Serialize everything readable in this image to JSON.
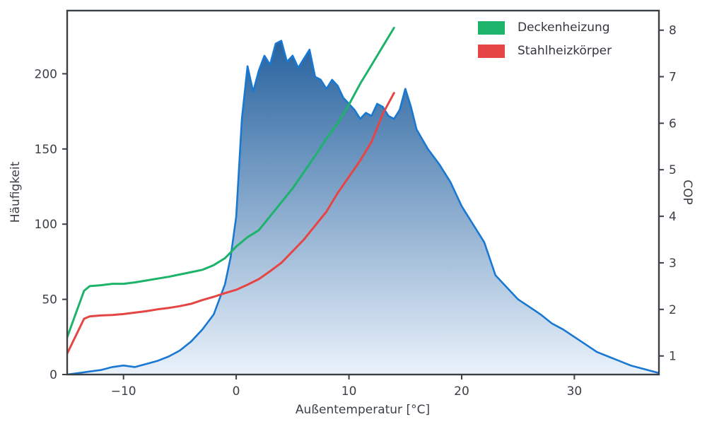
{
  "figure": {
    "background": "#ffffff",
    "axis_color": "#3b3f46",
    "tick_label_color": "#3b3f46"
  },
  "chart_data": {
    "type": "area",
    "title": "",
    "xlabel": "Außentemperatur [°C]",
    "ylabel": "Häufigkeit",
    "y2label": "COP",
    "grid": false,
    "legend_position": "upper right",
    "xlim": [
      -15,
      37.5
    ],
    "ylim": [
      0,
      242
    ],
    "y2lim": [
      0.6,
      8.42
    ],
    "xticks": [
      -10,
      0,
      10,
      20,
      30
    ],
    "yticks": [
      0,
      50,
      100,
      150,
      200
    ],
    "y2ticks": [
      1,
      2,
      3,
      4,
      5,
      6,
      7,
      8
    ],
    "area_series": {
      "name": "Häufigkeit",
      "axis": "left",
      "line_color": "#1878d2",
      "fill_gradient_top": "#155596",
      "fill_gradient_bottom": "#eaf2fb",
      "x": [
        -15,
        -14,
        -13,
        -12,
        -11,
        -10,
        -9,
        -8,
        -7,
        -6,
        -5,
        -4,
        -3,
        -2,
        -1,
        -0.5,
        0,
        0.5,
        1,
        1.5,
        2,
        2.5,
        3,
        3.5,
        4,
        4.5,
        5,
        5.5,
        6,
        6.5,
        7,
        7.5,
        8,
        8.5,
        9,
        9.5,
        10,
        10.5,
        11,
        11.5,
        12,
        12.5,
        13,
        13.5,
        14,
        14.5,
        15,
        15.5,
        16,
        17,
        18,
        19,
        20,
        21,
        22,
        23,
        24,
        25,
        26,
        27,
        28,
        29,
        30,
        31,
        32,
        33,
        34,
        35,
        36,
        37,
        37.5
      ],
      "y": [
        0,
        1,
        2,
        3,
        5,
        6,
        5,
        7,
        9,
        12,
        16,
        22,
        30,
        40,
        60,
        78,
        105,
        170,
        205,
        188,
        202,
        212,
        206,
        220,
        222,
        208,
        212,
        204,
        210,
        216,
        198,
        196,
        190,
        196,
        192,
        184,
        180,
        176,
        170,
        174,
        172,
        180,
        178,
        172,
        170,
        176,
        190,
        178,
        163,
        150,
        140,
        128,
        112,
        100,
        88,
        66,
        58,
        50,
        45,
        40,
        34,
        30,
        25,
        20,
        15,
        12,
        9,
        6,
        4,
        2,
        1
      ]
    },
    "series": [
      {
        "name": "Deckenheizung",
        "type": "line",
        "axis": "right",
        "color": "#1db36b",
        "x": [
          -15,
          -13.5,
          -13,
          -12,
          -11,
          -10,
          -9,
          -8,
          -7,
          -6,
          -5,
          -4,
          -3,
          -2,
          -1,
          0,
          1,
          2,
          3,
          4,
          5,
          6,
          7,
          8,
          9,
          10,
          11,
          12,
          13,
          14
        ],
        "y": [
          1.4,
          2.4,
          2.5,
          2.52,
          2.55,
          2.55,
          2.58,
          2.62,
          2.66,
          2.7,
          2.75,
          2.8,
          2.85,
          2.95,
          3.1,
          3.35,
          3.55,
          3.7,
          4.0,
          4.3,
          4.6,
          4.95,
          5.3,
          5.67,
          6.0,
          6.4,
          6.85,
          7.25,
          7.65,
          8.05
        ]
      },
      {
        "name": "Stahlheizkörper",
        "type": "line",
        "axis": "right",
        "color": "#e64545",
        "x": [
          -15,
          -13.5,
          -13,
          -12,
          -11,
          -10,
          -9,
          -8,
          -7,
          -6,
          -5,
          -4,
          -3,
          -2,
          -1,
          0,
          1,
          2,
          3,
          4,
          5,
          6,
          7,
          8,
          9,
          10,
          11,
          12,
          13,
          14
        ],
        "y": [
          1.05,
          1.8,
          1.85,
          1.87,
          1.88,
          1.9,
          1.93,
          1.96,
          2.0,
          2.03,
          2.07,
          2.12,
          2.2,
          2.27,
          2.35,
          2.42,
          2.53,
          2.65,
          2.82,
          3.0,
          3.25,
          3.5,
          3.8,
          4.1,
          4.5,
          4.85,
          5.2,
          5.6,
          6.2,
          6.65
        ]
      }
    ]
  }
}
